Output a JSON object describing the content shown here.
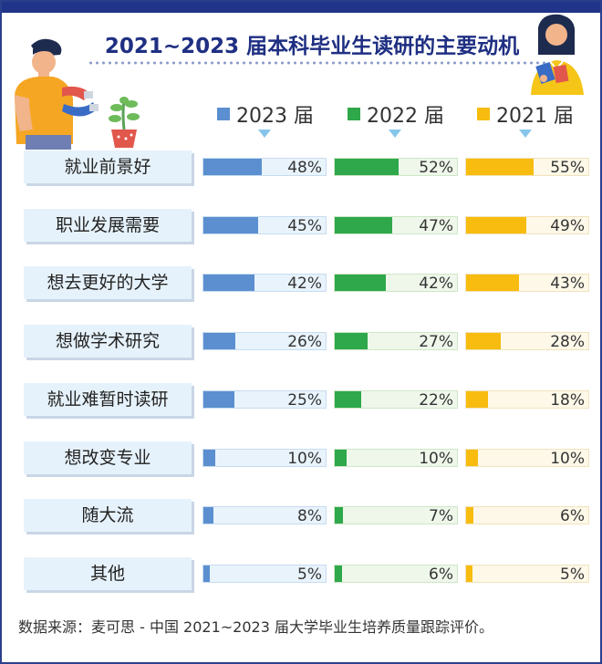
{
  "title": "2021~2023 届本科毕业生读研的主要动机",
  "source": "数据来源：麦可思 - 中国 2021~2023 届大学毕业生培养质量跟踪评价。",
  "chart_data": {
    "type": "bar",
    "title": "2021~2023 届本科毕业生读研的主要动机",
    "categories": [
      "就业前景好",
      "职业发展需要",
      "想去更好的大学",
      "想做学术研究",
      "就业难暂时读研",
      "想改变专业",
      "随大流",
      "其他"
    ],
    "value_unit": "%",
    "xlim": [
      0,
      100
    ],
    "series": [
      {
        "name": "2023 届",
        "color": "#5b8fd0",
        "track": "#e8f3fc",
        "track_border": "#c8dcef",
        "values": [
          48,
          45,
          42,
          26,
          25,
          10,
          8,
          5
        ],
        "labels": [
          "48%",
          "45%",
          "42%",
          "26%",
          "25%",
          "10%",
          "8%",
          "5%"
        ]
      },
      {
        "name": "2022 届",
        "color": "#2ea84a",
        "track": "#eef7ea",
        "track_border": "#cfe6c8",
        "values": [
          52,
          47,
          42,
          27,
          22,
          10,
          7,
          6
        ],
        "labels": [
          "52%",
          "47%",
          "42%",
          "27%",
          "22%",
          "10%",
          "7%",
          "6%"
        ]
      },
      {
        "name": "2021 届",
        "color": "#f7bc0f",
        "track": "#fdf8e8",
        "track_border": "#f0e3bd",
        "values": [
          55,
          49,
          43,
          28,
          18,
          10,
          6,
          5
        ],
        "labels": [
          "55%",
          "49%",
          "43%",
          "28%",
          "18%",
          "10%",
          "6%",
          "5%"
        ]
      }
    ]
  }
}
